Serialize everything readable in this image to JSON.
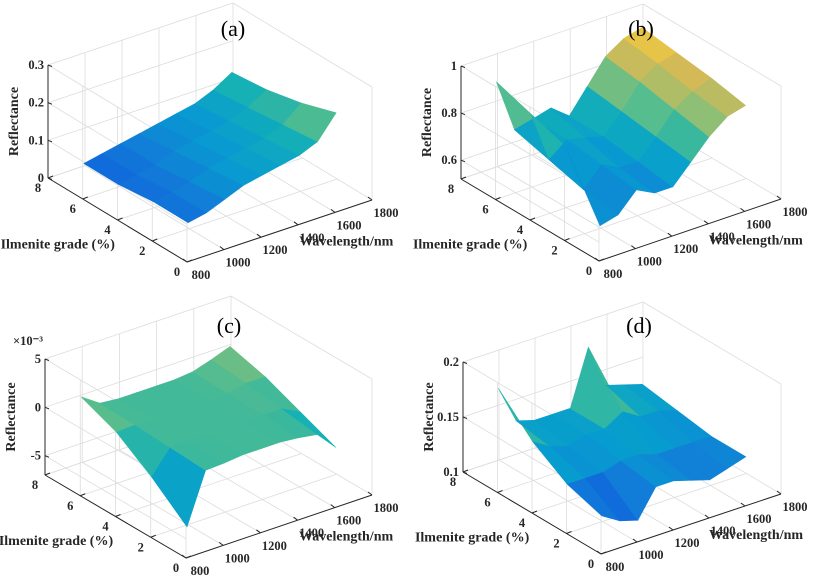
{
  "figure": {
    "panels": [
      "(a)",
      "(b)",
      "(c)",
      "(d)"
    ]
  },
  "chart_data": [
    {
      "type": "surface",
      "title": "(a)",
      "xlabel": "Wavelength/nm",
      "ylabel": "Ilmenite grade (%)",
      "zlabel": "Reflectance",
      "xlim": [
        800,
        1800
      ],
      "ylim": [
        0,
        8
      ],
      "zlim": [
        0,
        0.3
      ],
      "xticks": [
        "800",
        "1000",
        "1200",
        "1400",
        "1600",
        "1800"
      ],
      "yticks": [
        "0",
        "2",
        "4",
        "6",
        "8"
      ],
      "zticks": [
        "0",
        "0.1",
        "0.2",
        "0.3"
      ],
      "zexponent": "",
      "wavelength": [
        900,
        1000,
        1100,
        1200,
        1300,
        1400,
        1500,
        1600,
        1700
      ],
      "grade": [
        1,
        2,
        3,
        4,
        5,
        6,
        7
      ],
      "series": [
        {
          "grade": 7,
          "values": [
            0.05,
            0.06,
            0.07,
            0.08,
            0.09,
            0.1,
            0.11,
            0.13,
            0.16
          ]
        },
        {
          "grade": 5,
          "values": [
            0.05,
            0.06,
            0.07,
            0.09,
            0.1,
            0.11,
            0.12,
            0.14,
            0.17
          ]
        },
        {
          "grade": 3,
          "values": [
            0.06,
            0.07,
            0.08,
            0.1,
            0.11,
            0.12,
            0.13,
            0.15,
            0.19
          ]
        },
        {
          "grade": 1,
          "values": [
            0.06,
            0.07,
            0.09,
            0.11,
            0.12,
            0.13,
            0.14,
            0.16,
            0.22
          ]
        }
      ]
    },
    {
      "type": "surface",
      "title": "(b)",
      "xlabel": "Wavelength/nm",
      "ylabel": "Ilmenite grade (%)",
      "zlabel": "Reflectance",
      "xlim": [
        800,
        1800
      ],
      "ylim": [
        0,
        8
      ],
      "zlim": [
        0.52,
        1.0
      ],
      "xticks": [
        "800",
        "1000",
        "1200",
        "1400",
        "1600",
        "1800"
      ],
      "yticks": [
        "0",
        "2",
        "4",
        "6",
        "8"
      ],
      "zticks": [
        "0.6",
        "0.8",
        "1"
      ],
      "zexponent": "",
      "wavelength": [
        900,
        1000,
        1100,
        1200,
        1300,
        1400,
        1500,
        1600,
        1700
      ],
      "grade": [
        1,
        2,
        3,
        4,
        5,
        6,
        7
      ],
      "series": [
        {
          "grade": 7,
          "values": [
            0.95,
            0.72,
            0.74,
            0.76,
            0.7,
            0.8,
            0.9,
            0.95,
            0.97
          ]
        },
        {
          "grade": 5,
          "values": [
            0.9,
            0.68,
            0.74,
            0.72,
            0.7,
            0.78,
            0.88,
            0.93,
            0.95
          ]
        },
        {
          "grade": 3,
          "values": [
            0.85,
            0.64,
            0.72,
            0.68,
            0.68,
            0.76,
            0.85,
            0.9,
            0.93
          ]
        },
        {
          "grade": 1,
          "values": [
            0.6,
            0.62,
            0.7,
            0.66,
            0.66,
            0.74,
            0.82,
            0.88,
            0.9
          ]
        }
      ]
    },
    {
      "type": "surface",
      "title": "(c)",
      "xlabel": "Wavelength/nm",
      "ylabel": "Ilmenite grade (%)",
      "zlabel": "Reflectance",
      "xlim": [
        800,
        1800
      ],
      "ylim": [
        0,
        8
      ],
      "zlim": [
        -7,
        5
      ],
      "xticks": [
        "800",
        "1000",
        "1200",
        "1400",
        "1600",
        "1800"
      ],
      "yticks": [
        "0",
        "2",
        "4",
        "6",
        "8"
      ],
      "zticks": [
        "-5",
        "0",
        "5"
      ],
      "zexponent": "×10⁻³",
      "wavelength": [
        900,
        1000,
        1100,
        1200,
        1300,
        1400,
        1500,
        1600,
        1700
      ],
      "grade": [
        1,
        2,
        3,
        4,
        5,
        6,
        7
      ],
      "series": [
        {
          "grade": 7,
          "values": [
            1.5,
            0.2,
            0.0,
            0.0,
            0.0,
            0.0,
            0.2,
            0.8,
            1.5
          ]
        },
        {
          "grade": 5,
          "values": [
            0.0,
            0.1,
            0.0,
            0.0,
            0.0,
            0.0,
            0.1,
            0.5,
            0.5
          ]
        },
        {
          "grade": 3,
          "values": [
            -2.5,
            -0.1,
            0.0,
            0.0,
            0.0,
            0.0,
            0.0,
            0.0,
            -1.0
          ]
        },
        {
          "grade": 1,
          "values": [
            -5.5,
            -0.3,
            -0.2,
            0.0,
            0.0,
            0.0,
            -0.2,
            -0.5,
            -2.5
          ]
        }
      ]
    },
    {
      "type": "surface",
      "title": "(d)",
      "xlabel": "Wavelength/nm",
      "ylabel": "Ilmenite grade (%)",
      "zlabel": "Reflectance",
      "xlim": [
        800,
        1800
      ],
      "ylim": [
        0,
        8
      ],
      "zlim": [
        0.1,
        0.2
      ],
      "xticks": [
        "800",
        "1000",
        "1200",
        "1400",
        "1600",
        "1800"
      ],
      "yticks": [
        "0",
        "2",
        "4",
        "6",
        "8"
      ],
      "zticks": [
        "0.1",
        "0.15",
        "0.2"
      ],
      "zexponent": "",
      "wavelength": [
        900,
        1000,
        1100,
        1200,
        1300,
        1400,
        1500,
        1600,
        1700
      ],
      "grade": [
        1,
        2,
        3,
        4,
        5,
        6,
        7
      ],
      "series": [
        {
          "grade": 7,
          "values": [
            0.18,
            0.145,
            0.14,
            0.14,
            0.14,
            0.19,
            0.15,
            0.145,
            0.14
          ]
        },
        {
          "grade": 5,
          "values": [
            0.15,
            0.14,
            0.135,
            0.14,
            0.14,
            0.15,
            0.14,
            0.14,
            0.135
          ]
        },
        {
          "grade": 3,
          "values": [
            0.13,
            0.13,
            0.13,
            0.135,
            0.135,
            0.13,
            0.13,
            0.13,
            0.13
          ]
        },
        {
          "grade": 1,
          "values": [
            0.12,
            0.11,
            0.105,
            0.13,
            0.13,
            0.125,
            0.12,
            0.125,
            0.13
          ]
        }
      ]
    }
  ]
}
